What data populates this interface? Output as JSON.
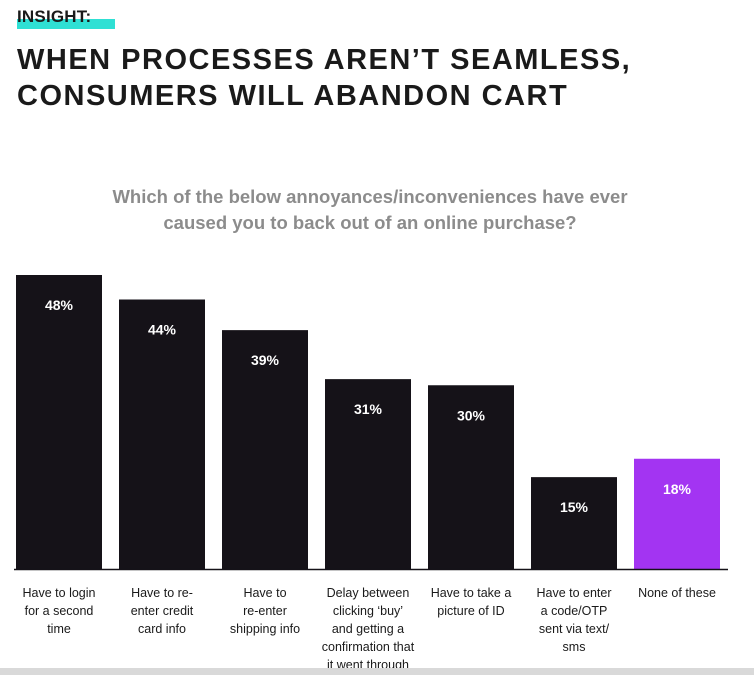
{
  "tag": "INSIGHT:",
  "headline": {
    "line1": "WHEN PROCESSES AREN’T SEAMLESS,",
    "line2": "CONSUMERS WILL ABANDON CART"
  },
  "chart_data": {
    "type": "bar",
    "title": "Which of the below annoyances/inconveniences have ever caused you to back out of an online purchase?",
    "title_line1": "Which of the below annoyances/inconveniences have ever",
    "title_line2": "caused you to back out of an online purchase?",
    "categories": [
      "Have to login for a second time",
      "Have to re-enter credit card info",
      "Have to re-enter shipping info",
      "Delay between clicking ‘buy’ and getting a confirmation that it went through",
      "Have to take a picture of ID",
      "Have to enter a code/OTP sent via text/sms",
      "None of these"
    ],
    "category_lines": [
      [
        "Have to login",
        "for a second",
        "time"
      ],
      [
        "Have to re-",
        "enter credit",
        "card info"
      ],
      [
        "Have to",
        "re-enter",
        "shipping info"
      ],
      [
        "Delay between",
        "clicking ‘buy’",
        "and getting a",
        "confirmation that",
        "it went through"
      ],
      [
        "Have to take a",
        "picture of ID"
      ],
      [
        "Have to enter",
        "a code/OTP",
        "sent via text/",
        "sms"
      ],
      [
        "None of these"
      ]
    ],
    "values": [
      48,
      44,
      39,
      31,
      30,
      15,
      18
    ],
    "value_labels": [
      "48%",
      "44%",
      "39%",
      "31%",
      "30%",
      "15%",
      "18%"
    ],
    "ylim": [
      0,
      48
    ],
    "xlabel": "",
    "ylabel": "",
    "colors": {
      "default": "#151218",
      "highlight": "#a334f2",
      "highlight_index": 6
    }
  }
}
